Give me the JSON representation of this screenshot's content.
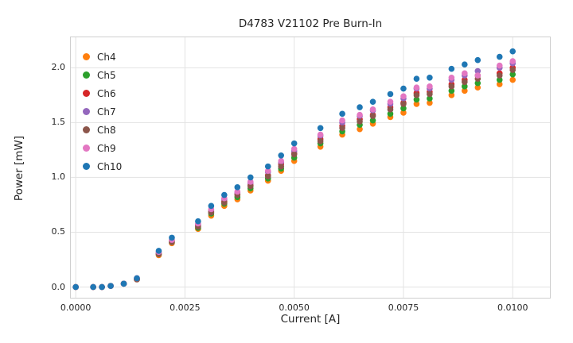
{
  "figure": {
    "title": "D4783 V21102 Pre Burn-In",
    "xlabel": "Current [A]",
    "ylabel": "Power [mW]"
  },
  "chart_data": {
    "type": "scatter",
    "title": "D4783 V21102 Pre Burn-In",
    "xlabel": "Current [A]",
    "ylabel": "Power [mW]",
    "grid": true,
    "legend_position": "upper left",
    "xlim": [
      -0.00013,
      0.01087
    ],
    "ylim": [
      -0.105,
      2.285
    ],
    "x_ticks": [
      0.0,
      0.0025,
      0.005,
      0.0075,
      0.01
    ],
    "x_tick_labels": [
      "0.0000",
      "0.0025",
      "0.0050",
      "0.0075",
      "0.0100"
    ],
    "y_ticks": [
      0.0,
      0.5,
      1.0,
      1.5,
      2.0
    ],
    "y_tick_labels": [
      "0.0",
      "0.5",
      "1.0",
      "1.5",
      "2.0"
    ],
    "marker": "circle",
    "x": [
      0.0,
      0.0004,
      0.0006,
      0.0008,
      0.0011,
      0.0014,
      0.0019,
      0.0022,
      0.0028,
      0.0031,
      0.0034,
      0.0037,
      0.004,
      0.0044,
      0.0047,
      0.005,
      0.0056,
      0.0061,
      0.0065,
      0.0068,
      0.0072,
      0.0075,
      0.0078,
      0.0081,
      0.0086,
      0.0089,
      0.0092,
      0.0097,
      0.01
    ],
    "series": [
      {
        "name": "Ch4",
        "color": "#ff7f0e",
        "values": [
          0,
          0,
          0,
          0.01,
          0.03,
          0.07,
          0.29,
          0.4,
          0.53,
          0.65,
          0.74,
          0.8,
          0.88,
          0.97,
          1.06,
          1.15,
          1.28,
          1.39,
          1.44,
          1.49,
          1.55,
          1.59,
          1.67,
          1.68,
          1.75,
          1.79,
          1.82,
          1.85,
          1.89
        ]
      },
      {
        "name": "Ch5",
        "color": "#2ca02c",
        "values": [
          0,
          0,
          0,
          0.01,
          0.03,
          0.07,
          0.3,
          0.41,
          0.54,
          0.67,
          0.76,
          0.82,
          0.9,
          0.99,
          1.08,
          1.18,
          1.31,
          1.42,
          1.48,
          1.52,
          1.58,
          1.63,
          1.71,
          1.72,
          1.79,
          1.83,
          1.86,
          1.89,
          1.94
        ]
      },
      {
        "name": "Ch6",
        "color": "#d62728",
        "values": [
          0,
          0,
          0,
          0.01,
          0.03,
          0.07,
          0.31,
          0.42,
          0.56,
          0.69,
          0.78,
          0.85,
          0.93,
          1.02,
          1.12,
          1.22,
          1.35,
          1.47,
          1.53,
          1.57,
          1.64,
          1.68,
          1.77,
          1.78,
          1.85,
          1.89,
          1.93,
          1.95,
          2.0
        ]
      },
      {
        "name": "Ch7",
        "color": "#9467bd",
        "values": [
          0,
          0,
          0,
          0.01,
          0.03,
          0.08,
          0.31,
          0.43,
          0.57,
          0.7,
          0.8,
          0.86,
          0.95,
          1.05,
          1.14,
          1.24,
          1.38,
          1.5,
          1.56,
          1.61,
          1.67,
          1.72,
          1.81,
          1.81,
          1.89,
          1.93,
          1.97,
          2.0,
          2.04
        ]
      },
      {
        "name": "Ch8",
        "color": "#8c564b",
        "values": [
          0,
          0,
          0,
          0.01,
          0.03,
          0.07,
          0.3,
          0.41,
          0.55,
          0.68,
          0.77,
          0.84,
          0.92,
          1.01,
          1.1,
          1.21,
          1.33,
          1.45,
          1.51,
          1.56,
          1.62,
          1.67,
          1.75,
          1.76,
          1.83,
          1.87,
          1.9,
          1.93,
          1.98
        ]
      },
      {
        "name": "Ch9",
        "color": "#e377c2",
        "values": [
          0,
          0,
          0,
          0.01,
          0.03,
          0.08,
          0.32,
          0.43,
          0.58,
          0.71,
          0.81,
          0.87,
          0.96,
          1.06,
          1.15,
          1.26,
          1.39,
          1.52,
          1.57,
          1.62,
          1.69,
          1.74,
          1.82,
          1.83,
          1.91,
          1.95,
          1.93,
          2.02,
          2.06
        ]
      },
      {
        "name": "Ch10",
        "color": "#1f77b4",
        "values": [
          0,
          0,
          0,
          0.01,
          0.03,
          0.08,
          0.33,
          0.45,
          0.6,
          0.74,
          0.84,
          0.91,
          1.0,
          1.1,
          1.2,
          1.31,
          1.45,
          1.58,
          1.64,
          1.69,
          1.76,
          1.81,
          1.9,
          1.91,
          1.99,
          2.03,
          2.07,
          2.1,
          2.15
        ]
      }
    ],
    "style": {
      "grid_color": "#e3e3e3",
      "spine_color": "#cfcfcf",
      "text_color": "#262626",
      "marker_radius": 3.8
    }
  }
}
